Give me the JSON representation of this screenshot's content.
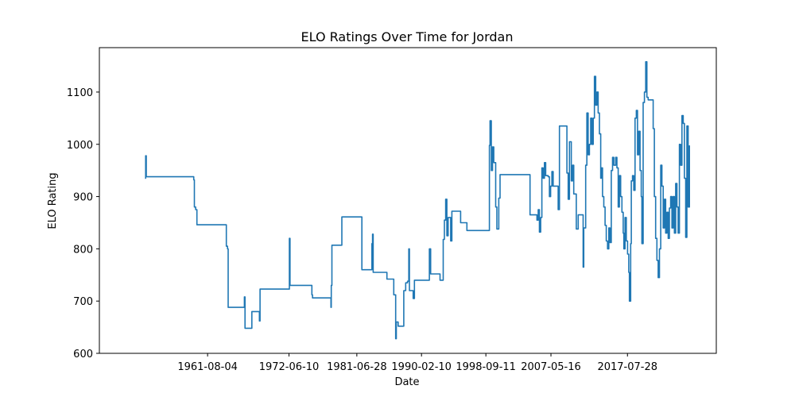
{
  "chart_data": {
    "type": "line",
    "title": "ELO Ratings Over Time for Jordan",
    "xlabel": "Date",
    "ylabel": "ELO Rating",
    "x_tick_labels": [
      "1961-08-04",
      "1972-06-10",
      "1981-06-28",
      "1990-02-10",
      "1998-09-11",
      "2007-05-16",
      "2017-07-28"
    ],
    "y_tick_values": [
      600,
      700,
      800,
      900,
      1000,
      1100
    ],
    "ylim": [
      600,
      1185
    ],
    "xlim": [
      "1947-03-01",
      "2029-06-01"
    ],
    "grid": false,
    "line_color": "#1f77b4",
    "series": [
      {
        "points": [
          [
            "1953-04-01",
            935
          ],
          [
            "1953-05-01",
            978
          ],
          [
            "1953-06-01",
            938
          ],
          [
            "1957-01-01",
            938
          ],
          [
            "1957-09-01",
            938
          ],
          [
            "1959-09-01",
            938
          ],
          [
            "1959-10-01",
            932
          ],
          [
            "1959-11-01",
            880
          ],
          [
            "1960-01-01",
            875
          ],
          [
            "1960-03-01",
            846
          ],
          [
            "1963-01-01",
            846
          ],
          [
            "1964-01-01",
            846
          ],
          [
            "1964-02-01",
            805
          ],
          [
            "1964-04-01",
            800
          ],
          [
            "1964-05-01",
            688
          ],
          [
            "1966-06-01",
            688
          ],
          [
            "1966-07-01",
            708
          ],
          [
            "1966-08-01",
            648
          ],
          [
            "1967-06-01",
            648
          ],
          [
            "1967-07-01",
            680
          ],
          [
            "1968-06-01",
            680
          ],
          [
            "1968-07-01",
            662
          ],
          [
            "1968-08-01",
            723
          ],
          [
            "1972-06-01",
            723
          ],
          [
            "1972-07-01",
            820
          ],
          [
            "1972-08-01",
            730
          ],
          [
            "1975-06-01",
            730
          ],
          [
            "1975-07-01",
            712
          ],
          [
            "1975-08-01",
            706
          ],
          [
            "1978-01-01",
            706
          ],
          [
            "1978-01-15",
            688
          ],
          [
            "1978-02-01",
            730
          ],
          [
            "1978-03-01",
            807
          ],
          [
            "1979-06-01",
            807
          ],
          [
            "1979-07-01",
            861
          ],
          [
            "1982-01-01",
            861
          ],
          [
            "1982-03-01",
            760
          ],
          [
            "1983-06-01",
            760
          ],
          [
            "1983-07-01",
            810
          ],
          [
            "1983-08-01",
            828
          ],
          [
            "1983-09-01",
            755
          ],
          [
            "1985-06-01",
            755
          ],
          [
            "1985-07-01",
            742
          ],
          [
            "1986-05-01",
            742
          ],
          [
            "1986-06-01",
            712
          ],
          [
            "1986-08-01",
            712
          ],
          [
            "1986-09-01",
            628
          ],
          [
            "1986-10-01",
            660
          ],
          [
            "1987-01-01",
            652
          ],
          [
            "1987-09-01",
            652
          ],
          [
            "1987-10-01",
            720
          ],
          [
            "1988-01-01",
            735
          ],
          [
            "1988-04-01",
            738
          ],
          [
            "1988-06-01",
            800
          ],
          [
            "1988-07-01",
            720
          ],
          [
            "1989-01-01",
            705
          ],
          [
            "1989-03-01",
            740
          ],
          [
            "1991-01-01",
            740
          ],
          [
            "1991-03-01",
            800
          ],
          [
            "1991-05-01",
            752
          ],
          [
            "1992-06-01",
            752
          ],
          [
            "1992-08-01",
            740
          ],
          [
            "1993-01-01",
            818
          ],
          [
            "1993-03-01",
            855
          ],
          [
            "1993-05-01",
            895
          ],
          [
            "1993-07-01",
            825
          ],
          [
            "1993-09-01",
            860
          ],
          [
            "1994-01-01",
            815
          ],
          [
            "1994-03-01",
            872
          ],
          [
            "1995-03-01",
            872
          ],
          [
            "1995-05-01",
            850
          ],
          [
            "1996-02-01",
            850
          ],
          [
            "1996-03-01",
            835
          ],
          [
            "1998-09-01",
            835
          ],
          [
            "1999-01-01",
            835
          ],
          [
            "1999-03-01",
            998
          ],
          [
            "1999-04-01",
            1045
          ],
          [
            "1999-06-01",
            950
          ],
          [
            "1999-08-01",
            995
          ],
          [
            "1999-10-01",
            965
          ],
          [
            "2000-01-01",
            880
          ],
          [
            "2000-03-01",
            838
          ],
          [
            "2000-06-01",
            897
          ],
          [
            "2000-08-01",
            942
          ],
          [
            "2004-06-01",
            942
          ],
          [
            "2004-08-01",
            865
          ],
          [
            "2005-05-01",
            865
          ],
          [
            "2005-07-01",
            855
          ],
          [
            "2005-09-01",
            875
          ],
          [
            "2005-11-01",
            832
          ],
          [
            "2006-01-01",
            860
          ],
          [
            "2006-03-01",
            955
          ],
          [
            "2006-05-01",
            935
          ],
          [
            "2006-07-01",
            965
          ],
          [
            "2006-09-01",
            940
          ],
          [
            "2007-01-01",
            938
          ],
          [
            "2007-03-01",
            900
          ],
          [
            "2007-05-01",
            920
          ],
          [
            "2007-07-01",
            948
          ],
          [
            "2007-09-01",
            920
          ],
          [
            "2008-03-01",
            920
          ],
          [
            "2008-05-01",
            875
          ],
          [
            "2008-07-01",
            1035
          ],
          [
            "2009-05-01",
            1035
          ],
          [
            "2009-07-01",
            945
          ],
          [
            "2009-09-01",
            895
          ],
          [
            "2009-11-01",
            1005
          ],
          [
            "2010-02-01",
            930
          ],
          [
            "2010-04-01",
            960
          ],
          [
            "2010-06-01",
            905
          ],
          [
            "2010-08-01",
            905
          ],
          [
            "2010-10-01",
            838
          ],
          [
            "2011-01-01",
            865
          ],
          [
            "2011-08-01",
            865
          ],
          [
            "2011-09-01",
            765
          ],
          [
            "2011-10-01",
            840
          ],
          [
            "2012-01-01",
            960
          ],
          [
            "2012-03-01",
            1060
          ],
          [
            "2012-05-01",
            980
          ],
          [
            "2012-07-01",
            1000
          ],
          [
            "2012-09-01",
            1050
          ],
          [
            "2012-11-01",
            1000
          ],
          [
            "2013-01-01",
            1050
          ],
          [
            "2013-03-01",
            1130
          ],
          [
            "2013-05-01",
            1075
          ],
          [
            "2013-07-01",
            1100
          ],
          [
            "2013-09-01",
            1060
          ],
          [
            "2013-11-01",
            1020
          ],
          [
            "2014-01-01",
            935
          ],
          [
            "2014-02-01",
            955
          ],
          [
            "2014-04-01",
            900
          ],
          [
            "2014-06-01",
            880
          ],
          [
            "2014-08-01",
            845
          ],
          [
            "2014-10-01",
            815
          ],
          [
            "2014-12-01",
            800
          ],
          [
            "2015-02-01",
            840
          ],
          [
            "2015-04-01",
            812
          ],
          [
            "2015-06-01",
            950
          ],
          [
            "2015-08-01",
            975
          ],
          [
            "2015-10-01",
            960
          ],
          [
            "2016-01-01",
            975
          ],
          [
            "2016-03-01",
            955
          ],
          [
            "2016-05-01",
            880
          ],
          [
            "2016-07-01",
            940
          ],
          [
            "2016-09-01",
            900
          ],
          [
            "2016-11-01",
            870
          ],
          [
            "2017-01-01",
            830
          ],
          [
            "2017-02-01",
            800
          ],
          [
            "2017-04-01",
            860
          ],
          [
            "2017-06-01",
            815
          ],
          [
            "2017-08-01",
            790
          ],
          [
            "2017-10-01",
            755
          ],
          [
            "2017-11-01",
            700
          ],
          [
            "2018-01-01",
            810
          ],
          [
            "2018-02-01",
            930
          ],
          [
            "2018-04-01",
            940
          ],
          [
            "2018-06-01",
            912
          ],
          [
            "2018-08-01",
            1050
          ],
          [
            "2018-10-01",
            1065
          ],
          [
            "2018-12-01",
            980
          ],
          [
            "2019-02-01",
            1025
          ],
          [
            "2019-04-01",
            950
          ],
          [
            "2019-06-01",
            900
          ],
          [
            "2019-07-01",
            810
          ],
          [
            "2019-09-01",
            1080
          ],
          [
            "2019-11-01",
            1100
          ],
          [
            "2020-01-01",
            1158
          ],
          [
            "2020-03-01",
            1090
          ],
          [
            "2020-05-01",
            1085
          ],
          [
            "2021-01-01",
            1030
          ],
          [
            "2021-03-01",
            900
          ],
          [
            "2021-05-01",
            820
          ],
          [
            "2021-07-01",
            778
          ],
          [
            "2021-09-01",
            745
          ],
          [
            "2021-11-01",
            800
          ],
          [
            "2022-01-01",
            960
          ],
          [
            "2022-03-01",
            920
          ],
          [
            "2022-05-01",
            840
          ],
          [
            "2022-07-01",
            895
          ],
          [
            "2022-09-01",
            830
          ],
          [
            "2022-11-01",
            870
          ],
          [
            "2023-01-01",
            820
          ],
          [
            "2023-03-01",
            878
          ],
          [
            "2023-05-01",
            900
          ],
          [
            "2023-07-01",
            840
          ],
          [
            "2023-09-01",
            900
          ],
          [
            "2023-11-01",
            830
          ],
          [
            "2024-01-01",
            925
          ],
          [
            "2024-03-01",
            880
          ],
          [
            "2024-05-01",
            830
          ],
          [
            "2024-07-01",
            1000
          ],
          [
            "2024-09-01",
            960
          ],
          [
            "2024-11-01",
            1055
          ],
          [
            "2025-01-01",
            1040
          ],
          [
            "2025-03-01",
            935
          ],
          [
            "2025-05-01",
            822
          ],
          [
            "2025-07-01",
            1035
          ],
          [
            "2025-09-01",
            880
          ],
          [
            "2025-11-01",
            998
          ]
        ]
      }
    ]
  }
}
